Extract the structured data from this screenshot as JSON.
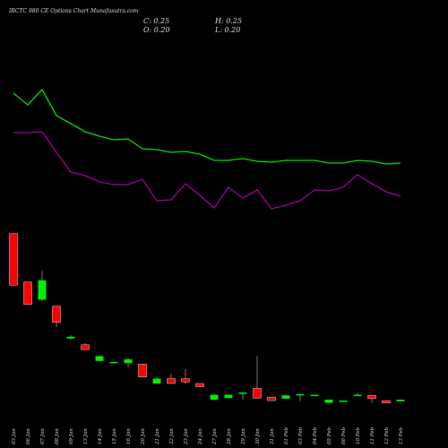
{
  "chart_data": {
    "type": "candlestick",
    "title": "IRCTC 980 CE Options Chart Munafasutra.com",
    "summary": [
      {
        "label": "C: 0.25"
      },
      {
        "label": "H: 0.25"
      },
      {
        "label": "O: 0.20"
      },
      {
        "label": "L: 0.20"
      }
    ],
    "categories": [
      "03 Jan",
      "06 Jan",
      "07 Jan",
      "08 Jan",
      "09 Jan",
      "13 Jan",
      "14 Jan",
      "15 Jan",
      "16 Jan",
      "20 Jan",
      "21 Jan",
      "22 Jan",
      "23 Jan",
      "24 Jan",
      "27 Jan",
      "28 Jan",
      "29 Jan",
      "30 Jan",
      "31 Jan",
      "01 Feb",
      "03 Feb",
      "04 Feb",
      "05 Feb",
      "06 Feb",
      "10 Feb",
      "11 Feb",
      "12 Feb",
      "13 Feb"
    ],
    "open": [
      5.4,
      3.9,
      3.35,
      3.15,
      2.15,
      1.95,
      1.45,
      1.4,
      1.38,
      1.35,
      0.75,
      0.9,
      0.9,
      0.75,
      0.25,
      0.3,
      0.45,
      0.6,
      0.33,
      0.28,
      0.4,
      0.38,
      0.15,
      0.2,
      0.38,
      0.38,
      0.22,
      0.2
    ],
    "high": [
      5.4,
      3.9,
      4.25,
      3.15,
      2.25,
      2.0,
      1.6,
      1.42,
      1.55,
      1.35,
      0.95,
      1.05,
      1.2,
      0.75,
      0.42,
      0.4,
      0.47,
      1.6,
      0.33,
      0.4,
      0.42,
      0.4,
      0.25,
      0.22,
      0.45,
      0.38,
      0.22,
      0.25
    ],
    "low": [
      3.8,
      3.2,
      3.3,
      2.5,
      2.1,
      1.8,
      1.45,
      1.4,
      1.25,
      0.95,
      0.75,
      0.75,
      0.75,
      0.65,
      0.25,
      0.3,
      0.25,
      0.3,
      0.22,
      0.28,
      0.2,
      0.38,
      0.15,
      0.2,
      0.38,
      0.15,
      0.15,
      0.2
    ],
    "close": [
      3.8,
      3.2,
      3.95,
      2.65,
      2.2,
      1.8,
      1.6,
      1.42,
      1.5,
      0.95,
      0.9,
      0.75,
      0.8,
      0.65,
      0.4,
      0.4,
      0.47,
      0.3,
      0.22,
      0.38,
      0.42,
      0.4,
      0.25,
      0.22,
      0.4,
      0.28,
      0.15,
      0.25
    ],
    "up_color": "#00ee00",
    "down_color": "#ff0000",
    "ylim": [
      0,
      5.42
    ],
    "series": [
      {
        "color": "#00dd00",
        "axis": "y2",
        "values": [
          73,
          66.5,
          75,
          60.5,
          56,
          51.5,
          49,
          47,
          47.5,
          42,
          41.5,
          40,
          40.5,
          39,
          35.5,
          35.5,
          36.5,
          35,
          34.5,
          35.5,
          35.5,
          35.5,
          34,
          34,
          35.5,
          35,
          33.5,
          34
        ]
      },
      {
        "color": "#a000a0",
        "axis": "y2",
        "values": [
          51,
          51,
          51.5,
          40,
          29,
          27,
          23.5,
          22,
          22,
          25,
          13,
          13.5,
          22.5,
          16,
          9,
          20.5,
          14.5,
          19,
          8.5,
          10.5,
          13,
          19,
          18.5,
          20.5,
          27.5,
          22.5,
          18,
          15.5
        ]
      }
    ],
    "y2lim": [
      0,
      100
    ]
  }
}
